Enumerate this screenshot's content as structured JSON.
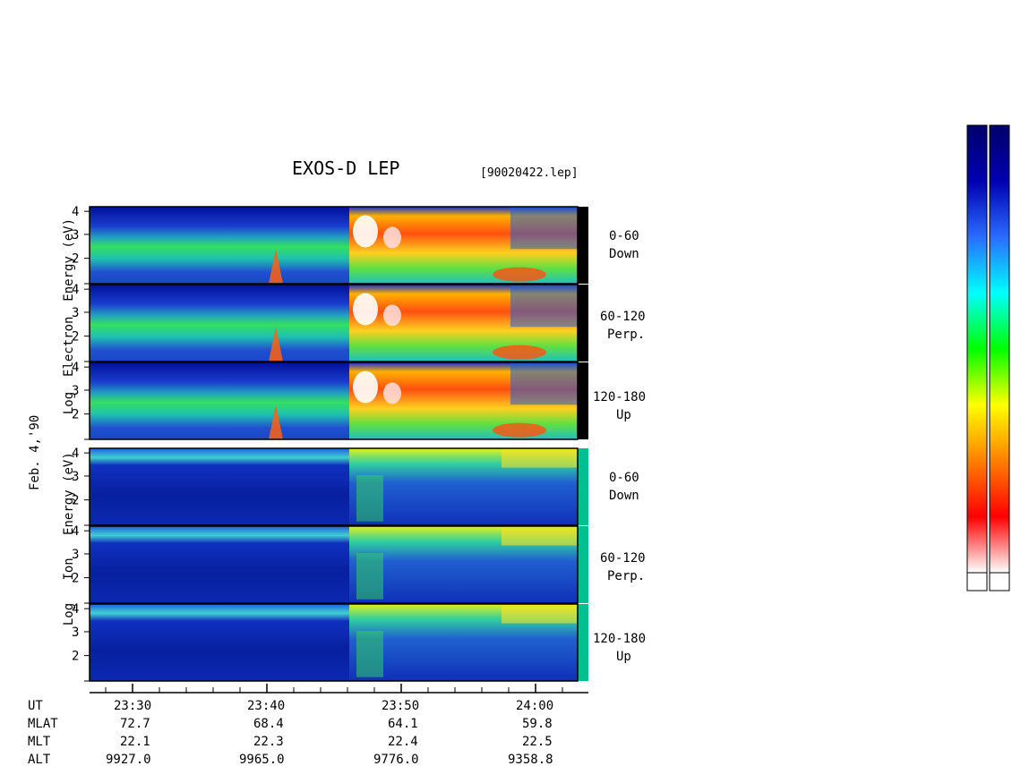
{
  "chart_data": {
    "type": "heatmap",
    "title": "EXOS-D LEP",
    "file_label": "[90020422.lep]",
    "date_label": "Feb. 4,'90",
    "electron_axis_label": [
      "Log",
      "Electron",
      "Energy",
      "(eV)"
    ],
    "ion_axis_label": [
      "Log",
      "Ion",
      "Energy",
      "(eV)"
    ],
    "y_ticks": [
      "4",
      "3",
      "2"
    ],
    "panels": [
      {
        "species": "Electron",
        "pitch_range": "0-60",
        "direction": "Down"
      },
      {
        "species": "Electron",
        "pitch_range": "60-120",
        "direction": "Perp."
      },
      {
        "species": "Electron",
        "pitch_range": "120-180",
        "direction": "Up"
      },
      {
        "species": "Ion",
        "pitch_range": "0-60",
        "direction": "Down"
      },
      {
        "species": "Ion",
        "pitch_range": "60-120",
        "direction": "Perp."
      },
      {
        "species": "Ion",
        "pitch_range": "120-180",
        "direction": "Up"
      }
    ],
    "time_ticks": [
      "23:30",
      "23:40",
      "23:50",
      "24:00"
    ],
    "orbit_table": {
      "row_labels": [
        "UT",
        "MLAT",
        "MLT",
        "ALT"
      ],
      "columns": [
        {
          "UT": "23:30",
          "MLAT": "72.7",
          "MLT": "22.1",
          "ALT": "9927.0"
        },
        {
          "UT": "23:40",
          "MLAT": "68.4",
          "MLT": "22.3",
          "ALT": "9965.0"
        },
        {
          "UT": "23:50",
          "MLAT": "64.1",
          "MLT": "22.4",
          "ALT": "9776.0"
        },
        {
          "UT": "24:00",
          "MLAT": "59.8",
          "MLT": "22.5",
          "ALT": "9358.8"
        }
      ]
    },
    "colorbars": [
      "E",
      "I"
    ],
    "colormap": [
      "#ffffff",
      "#ff0000",
      "#ff8000",
      "#ffff00",
      "#00ff00",
      "#00ffff",
      "#2a6cff",
      "#0000b0",
      "#00006a"
    ]
  }
}
